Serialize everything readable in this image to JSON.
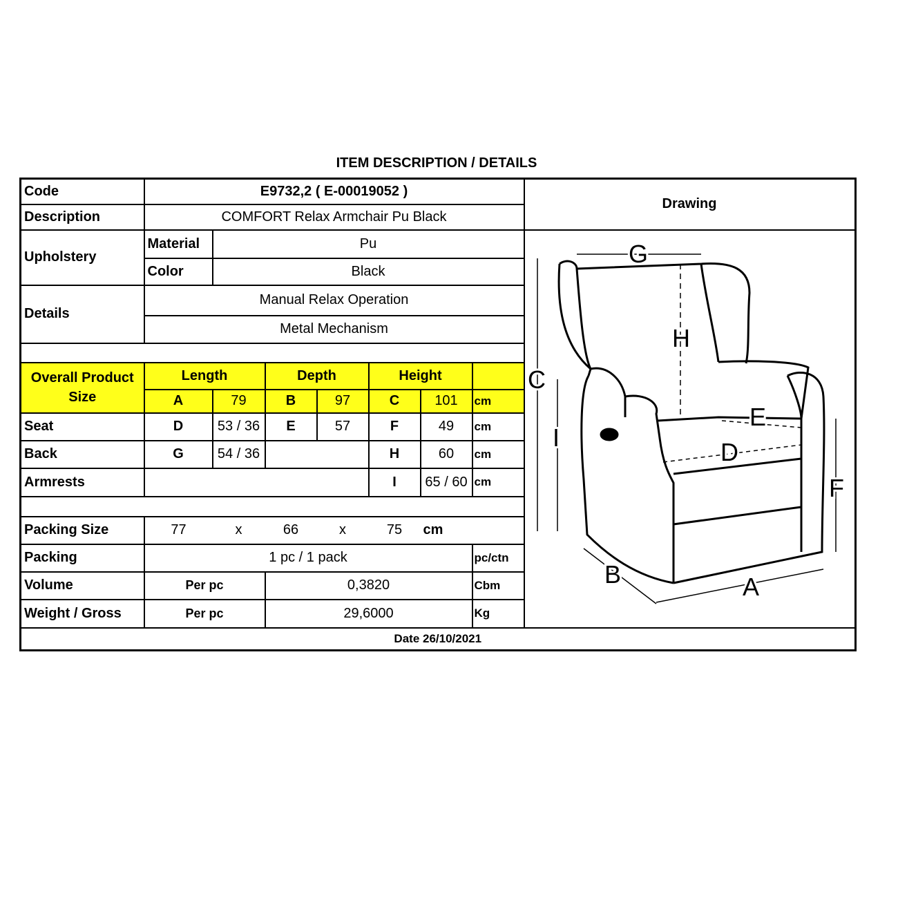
{
  "title": "ITEM DESCRIPTION / DETAILS",
  "code": {
    "label": "Code",
    "value": "E9732,2  ( E-00019052 )"
  },
  "description": {
    "label": "Description",
    "value": "COMFORT Relax Armchair  Pu Black"
  },
  "upholstery": {
    "label": "Upholstery",
    "material_label": "Material",
    "material": "Pu",
    "color_label": "Color",
    "color": "Black"
  },
  "details": {
    "label": "Details",
    "items": [
      "Manual Relax Operation",
      "Metal Mechanism"
    ]
  },
  "overall": {
    "label": "Overall Product Size",
    "length": "Length",
    "depth": "Depth",
    "height": "Height",
    "a": "A",
    "a_val": "79",
    "b": "B",
    "b_val": "97",
    "c": "C",
    "c_val": "101",
    "unit": "cm",
    "highlight": "#ffff1a"
  },
  "seat": {
    "label": "Seat",
    "d": "D",
    "d_val": "53 / 36",
    "e": "E",
    "e_val": "57",
    "f": "F",
    "f_val": "49",
    "unit": "cm"
  },
  "back": {
    "label": "Back",
    "g": "G",
    "g_val": "54 / 36",
    "h": "H",
    "h_val": "60",
    "unit": "cm"
  },
  "armrests": {
    "label": "Armrests",
    "i": "I",
    "i_val": "65 / 60",
    "unit": "cm"
  },
  "packing_size": {
    "label": "Packing Size",
    "l": "77",
    "x1": "x",
    "w": "66",
    "x2": "x",
    "h": "75",
    "unit": "cm"
  },
  "packing": {
    "label": "Packing",
    "value": "1 pc / 1 pack",
    "unit": "pc/ctn"
  },
  "volume": {
    "label": "Volume",
    "per": "Per pc",
    "value": "0,3820",
    "unit": "Cbm"
  },
  "weight": {
    "label": "Weight / Gross",
    "per": "Per pc",
    "value": "29,6000",
    "unit": "Kg"
  },
  "date": "Date 26/10/2021",
  "drawing": {
    "label": "Drawing",
    "letters": {
      "A": "A",
      "B": "B",
      "C": "C",
      "D": "D",
      "E": "E",
      "F": "F",
      "G": "G",
      "H": "H",
      "I": "I"
    }
  }
}
